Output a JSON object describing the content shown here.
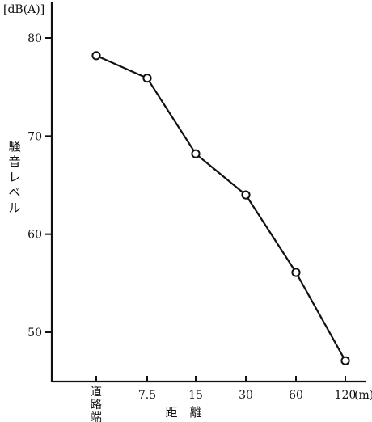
{
  "chart_data": {
    "type": "line",
    "y_unit": "[dB(A)]",
    "ylabel": "騒音レベル",
    "xlabel": "距　離",
    "x_unit": "(m)",
    "categories": [
      "道路端",
      "7.5",
      "15",
      "30",
      "60",
      "120"
    ],
    "y_ticks": [
      "80",
      "70",
      "60",
      "50"
    ],
    "ylim": [
      45,
      84
    ],
    "series": [
      {
        "values": [
          78.2,
          75.9,
          68.2,
          64.0,
          56.1,
          47.1
        ]
      }
    ],
    "marker": "open-circle",
    "grid": false,
    "colors": {
      "line": "#111111",
      "marker_fill": "#ffffff"
    }
  }
}
